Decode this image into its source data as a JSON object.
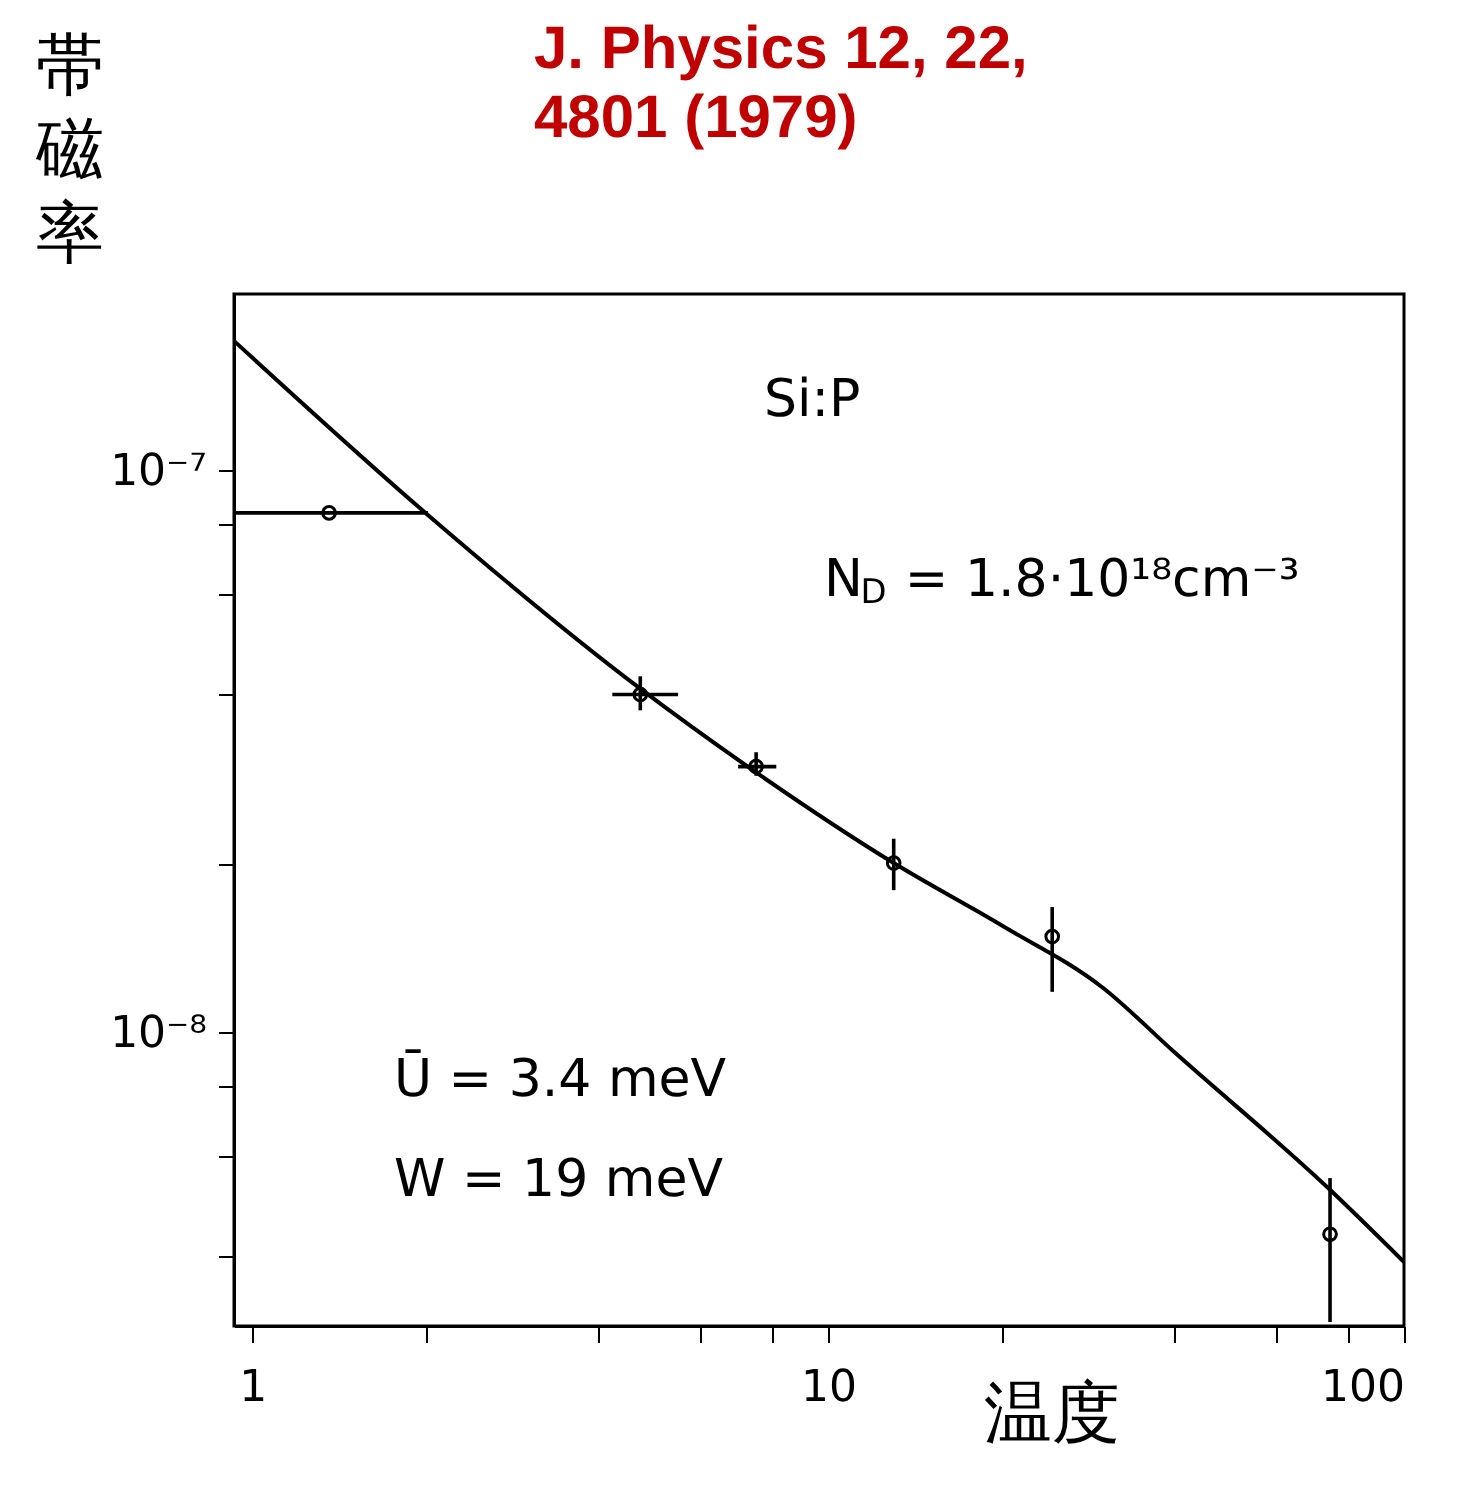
{
  "chart_data": {
    "type": "scatter",
    "title": "J. Physics 12, 22,\n4801 (1979)",
    "xlabel": "温度",
    "ylabel": "帯磁率",
    "log": "xy",
    "grid": false,
    "xlim": [
      0.93,
      100
    ],
    "ylim": [
      3e-09,
      2.06e-07
    ],
    "xticks": [
      1,
      {
        "value": 2,
        "label": null
      },
      {
        "value": 4,
        "label": null
      },
      {
        "value": 6,
        "label": null
      },
      {
        "value": 8,
        "label": null
      },
      10,
      {
        "value": 20,
        "label": null
      },
      {
        "value": 40,
        "label": null
      },
      {
        "value": 60,
        "label": null
      },
      {
        "value": 80,
        "label": null
      },
      100
    ],
    "yticks": [
      {
        "value": 4e-09,
        "label": null
      },
      {
        "value": 6e-09,
        "label": null
      },
      {
        "value": 8e-09,
        "label": null
      },
      {
        "value": 1e-08,
        "label": "10⁻⁸"
      },
      {
        "value": 2e-08,
        "label": null
      },
      {
        "value": 4e-08,
        "label": null
      },
      {
        "value": 6e-08,
        "label": null
      },
      {
        "value": 8e-08,
        "label": null
      },
      {
        "value": 1e-07,
        "label": "10⁻⁷"
      }
    ],
    "annotations": [
      "Si:P",
      "N$_{D}$ = 1.8·10¹⁸cm⁻³",
      "Ū = 3.4 meV",
      "W = 19  meV"
    ],
    "series": [
      {
        "type": "scatter",
        "marker": "circle",
        "color": "#000000",
        "x": [
          1.36,
          4.72,
          7.5,
          13,
          24.5,
          74.4
        ],
        "values": [
          8.4e-08,
          3.99e-08,
          2.97e-08,
          2e-08,
          1.48e-08,
          4.37e-09
        ],
        "errors": [
          null,
          [
            3.74e-08,
            4.3e-08
          ],
          [
            2.86e-08,
            3.15e-08
          ],
          [
            1.79e-08,
            2.21e-08
          ],
          [
            1.18e-08,
            1.67e-08
          ],
          [
            3.05e-09,
            5.5e-09
          ]
        ],
        "xerrors": [
          [
            0.93,
            2.02
          ],
          [
            4.22,
            5.49
          ],
          [
            6.98,
            8.13
          ],
          null,
          null,
          null
        ]
      },
      {
        "type": "line",
        "color": "#000000",
        "x": [
          0.93,
          2.0,
          4.7,
          7.5,
          13,
          20,
          30,
          40,
          74,
          100
        ],
        "values": [
          1.7e-07,
          8.4e-08,
          4.1e-08,
          2.9e-08,
          2e-08,
          1.55e-08,
          1.2e-08,
          9.2e-09,
          5.27e-09,
          3.9e-09
        ]
      }
    ]
  }
}
